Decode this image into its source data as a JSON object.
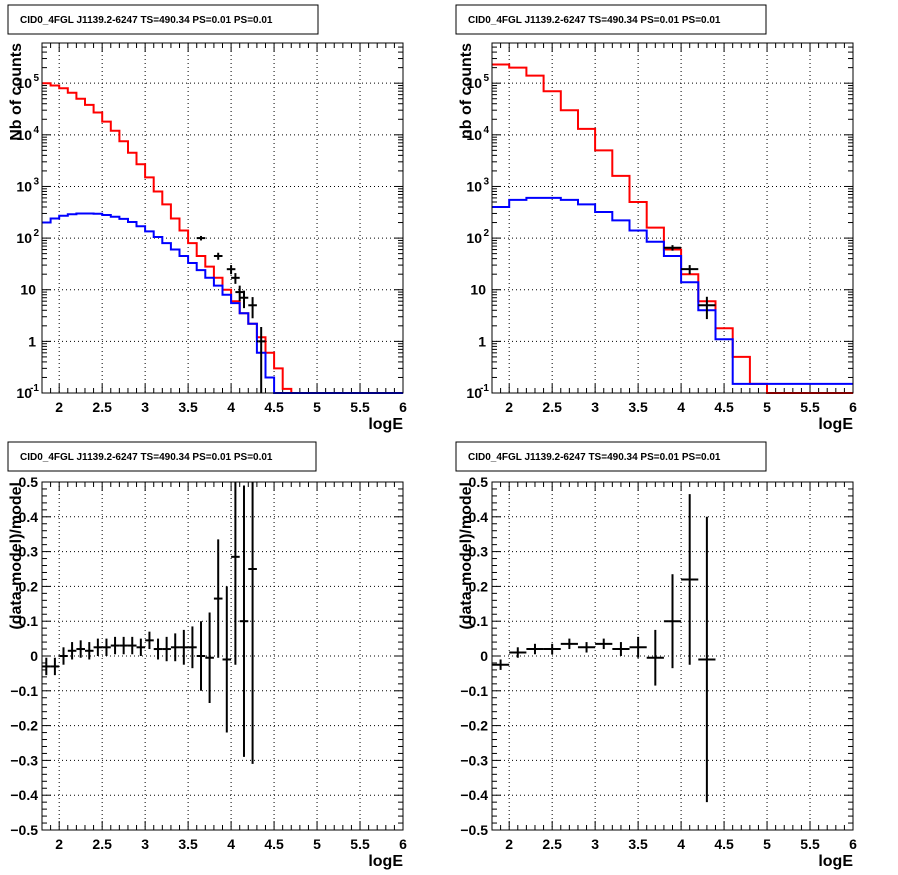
{
  "chart_data": [
    {
      "type": "line",
      "panel": "top-left",
      "title": "CID0_4FGL J1139.2-6247 TS=490.34 PS=0.01 PS=0.01",
      "xlabel": "logE",
      "ylabel": "Nb of counts",
      "xlim": [
        1.8,
        6.0
      ],
      "ylim": [
        0.1,
        600000
      ],
      "yscale": "log",
      "grid": true,
      "xticks": [
        "2",
        "2.5",
        "3",
        "3.5",
        "4",
        "4.5",
        "5",
        "5.5",
        "6"
      ],
      "yticks": [
        {
          "base": "10",
          "exp": "-1"
        },
        {
          "base": "1",
          "exp": ""
        },
        {
          "base": "10",
          "exp": ""
        },
        {
          "base": "10",
          "exp": "2"
        },
        {
          "base": "10",
          "exp": "3"
        },
        {
          "base": "10",
          "exp": "4"
        },
        {
          "base": "10",
          "exp": "5"
        }
      ],
      "series": [
        {
          "color": "#ff0000",
          "style": "step",
          "edges": [
            1.8,
            1.9,
            2.0,
            2.1,
            2.2,
            2.3,
            2.4,
            2.5,
            2.6,
            2.7,
            2.8,
            2.9,
            3.0,
            3.1,
            3.2,
            3.3,
            3.4,
            3.5,
            3.6,
            3.7,
            3.8,
            3.9,
            4.0,
            4.1,
            4.2,
            4.3,
            4.4,
            4.5,
            4.6,
            4.7,
            4.8,
            4.9,
            5.0,
            6.0
          ],
          "values": [
            100000,
            90000,
            80000,
            65000,
            50000,
            38000,
            27000,
            18000,
            12000,
            7500,
            4500,
            2700,
            1500,
            800,
            450,
            240,
            140,
            80,
            45,
            28,
            17,
            10,
            6,
            3.5,
            2.2,
            1.2,
            0.6,
            0.3,
            0.12,
            0.1,
            0.1,
            0.1,
            0.1
          ]
        },
        {
          "color": "#0000ff",
          "style": "step",
          "edges": [
            1.8,
            1.9,
            2.0,
            2.1,
            2.2,
            2.3,
            2.4,
            2.5,
            2.6,
            2.7,
            2.8,
            2.9,
            3.0,
            3.1,
            3.2,
            3.3,
            3.4,
            3.5,
            3.6,
            3.7,
            3.8,
            3.9,
            4.0,
            4.1,
            4.2,
            4.3,
            4.4,
            4.5,
            4.6,
            6.0
          ],
          "values": [
            200,
            240,
            270,
            290,
            300,
            300,
            295,
            280,
            260,
            235,
            205,
            170,
            135,
            105,
            80,
            60,
            45,
            33,
            24,
            17,
            12,
            8,
            5.5,
            3.5,
            2.2,
            0.6,
            0.2,
            0.1,
            0.1
          ]
        },
        {
          "color": "#000000",
          "style": "errorbar",
          "x": [
            3.65,
            3.85,
            4.0,
            4.05,
            4.1,
            4.15,
            4.25,
            4.35
          ],
          "y": [
            100,
            45,
            25,
            17,
            9,
            7,
            5,
            1
          ],
          "xerr": [
            0.05,
            0.05,
            0.05,
            0.05,
            0.05,
            0.05,
            0.05,
            0.05
          ],
          "yerr": [
            10,
            7,
            5,
            4,
            3,
            2.6,
            2.2,
            0.9
          ]
        }
      ]
    },
    {
      "type": "line",
      "panel": "top-right",
      "title": "CID0_4FGL J1139.2-6247 TS=490.34 PS=0.01 PS=0.01",
      "xlabel": "logE",
      "ylabel": "nb of counts",
      "xlim": [
        1.8,
        6.0
      ],
      "ylim": [
        0.1,
        600000
      ],
      "yscale": "log",
      "grid": true,
      "xticks": [
        "2",
        "2.5",
        "3",
        "3.5",
        "4",
        "4.5",
        "5",
        "5.5",
        "6"
      ],
      "yticks": [
        {
          "base": "10",
          "exp": "-1"
        },
        {
          "base": "1",
          "exp": ""
        },
        {
          "base": "10",
          "exp": ""
        },
        {
          "base": "10",
          "exp": "2"
        },
        {
          "base": "10",
          "exp": "3"
        },
        {
          "base": "10",
          "exp": "4"
        },
        {
          "base": "10",
          "exp": "5"
        }
      ],
      "series": [
        {
          "color": "#ff0000",
          "style": "step",
          "edges": [
            1.8,
            2.0,
            2.2,
            2.4,
            2.6,
            2.8,
            3.0,
            3.2,
            3.4,
            3.6,
            3.8,
            4.0,
            4.2,
            4.4,
            4.6,
            4.8,
            5.0,
            6.0
          ],
          "values": [
            230000,
            200000,
            140000,
            70000,
            30000,
            13000,
            5000,
            1600,
            500,
            160,
            60,
            20,
            6,
            1.8,
            0.5,
            0.15,
            0.1
          ]
        },
        {
          "color": "#0000ff",
          "style": "step",
          "edges": [
            1.8,
            2.0,
            2.2,
            2.4,
            2.6,
            2.8,
            3.0,
            3.2,
            3.4,
            3.6,
            3.8,
            4.0,
            4.2,
            4.4,
            4.6,
            6.0
          ],
          "values": [
            400,
            550,
            600,
            600,
            550,
            450,
            320,
            220,
            140,
            85,
            45,
            14,
            4,
            1.1,
            0.15
          ]
        },
        {
          "color": "#000000",
          "style": "errorbar",
          "x": [
            3.9,
            4.1,
            4.3
          ],
          "y": [
            65,
            25,
            5
          ],
          "xerr": [
            0.1,
            0.1,
            0.1
          ],
          "yerr": [
            8,
            5,
            2.3
          ]
        }
      ]
    },
    {
      "type": "scatter",
      "panel": "bottom-left",
      "title": "CID0_4FGL J1139.2-6247 TS=490.34 PS=0.01 PS=0.01",
      "xlabel": "logE",
      "ylabel": "(data-model)/model",
      "xlim": [
        1.8,
        6.0
      ],
      "ylim": [
        -0.5,
        0.5
      ],
      "grid": true,
      "xticks": [
        "2",
        "2.5",
        "3",
        "3.5",
        "4",
        "4.5",
        "5",
        "5.5",
        "6"
      ],
      "yticks": [
        "−0.5",
        "−0.4",
        "−0.3",
        "−0.2",
        "−0.1",
        "0",
        "0.1",
        "0.2",
        "0.3",
        "0.4",
        "0.5"
      ],
      "series": [
        {
          "color": "#000000",
          "style": "errorbar",
          "x": [
            1.85,
            1.95,
            2.05,
            2.15,
            2.25,
            2.35,
            2.45,
            2.55,
            2.65,
            2.75,
            2.85,
            2.95,
            3.05,
            3.15,
            3.25,
            3.35,
            3.45,
            3.55,
            3.65,
            3.75,
            3.85,
            3.95,
            4.05,
            4.15,
            4.25
          ],
          "y": [
            -0.03,
            -0.03,
            0.0,
            0.015,
            0.02,
            0.015,
            0.025,
            0.025,
            0.03,
            0.03,
            0.03,
            0.025,
            0.045,
            0.02,
            0.02,
            0.025,
            0.025,
            0.025,
            0.0,
            -0.005,
            0.165,
            -0.01,
            0.285,
            0.1,
            0.25
          ],
          "xerr": [
            0.05,
            0.05,
            0.05,
            0.05,
            0.05,
            0.05,
            0.05,
            0.05,
            0.05,
            0.05,
            0.05,
            0.05,
            0.05,
            0.05,
            0.05,
            0.05,
            0.05,
            0.05,
            0.05,
            0.05,
            0.05,
            0.05,
            0.05,
            0.05,
            0.05
          ],
          "yerr": [
            0.025,
            0.025,
            0.025,
            0.025,
            0.025,
            0.025,
            0.025,
            0.025,
            0.025,
            0.025,
            0.025,
            0.025,
            0.025,
            0.03,
            0.035,
            0.04,
            0.05,
            0.06,
            0.1,
            0.13,
            0.17,
            0.21,
            0.31,
            0.39,
            0.56
          ]
        }
      ]
    },
    {
      "type": "scatter",
      "panel": "bottom-right",
      "title": "CID0_4FGL J1139.2-6247 TS=490.34 PS=0.01 PS=0.01",
      "xlabel": "logE",
      "ylabel": "(data-model)/model",
      "xlim": [
        1.8,
        6.0
      ],
      "ylim": [
        -0.5,
        0.5
      ],
      "grid": true,
      "xticks": [
        "2",
        "2.5",
        "3",
        "3.5",
        "4",
        "4.5",
        "5",
        "5.5",
        "6"
      ],
      "yticks": [
        "−0.5",
        "−0.4",
        "−0.3",
        "−0.2",
        "−0.1",
        "0",
        "0.1",
        "0.2",
        "0.3",
        "0.4",
        "0.5"
      ],
      "series": [
        {
          "color": "#000000",
          "style": "errorbar",
          "x": [
            1.9,
            2.1,
            2.3,
            2.5,
            2.7,
            2.9,
            3.1,
            3.3,
            3.5,
            3.7,
            3.9,
            4.1,
            4.3
          ],
          "y": [
            -0.025,
            0.01,
            0.02,
            0.02,
            0.035,
            0.025,
            0.035,
            0.02,
            0.025,
            -0.005,
            0.1,
            0.22,
            -0.01
          ],
          "xerr": [
            0.1,
            0.1,
            0.1,
            0.1,
            0.1,
            0.1,
            0.1,
            0.1,
            0.1,
            0.1,
            0.1,
            0.1,
            0.1
          ],
          "yerr": [
            0.015,
            0.015,
            0.015,
            0.015,
            0.015,
            0.015,
            0.015,
            0.02,
            0.03,
            0.08,
            0.135,
            0.245,
            0.41
          ]
        }
      ]
    }
  ]
}
